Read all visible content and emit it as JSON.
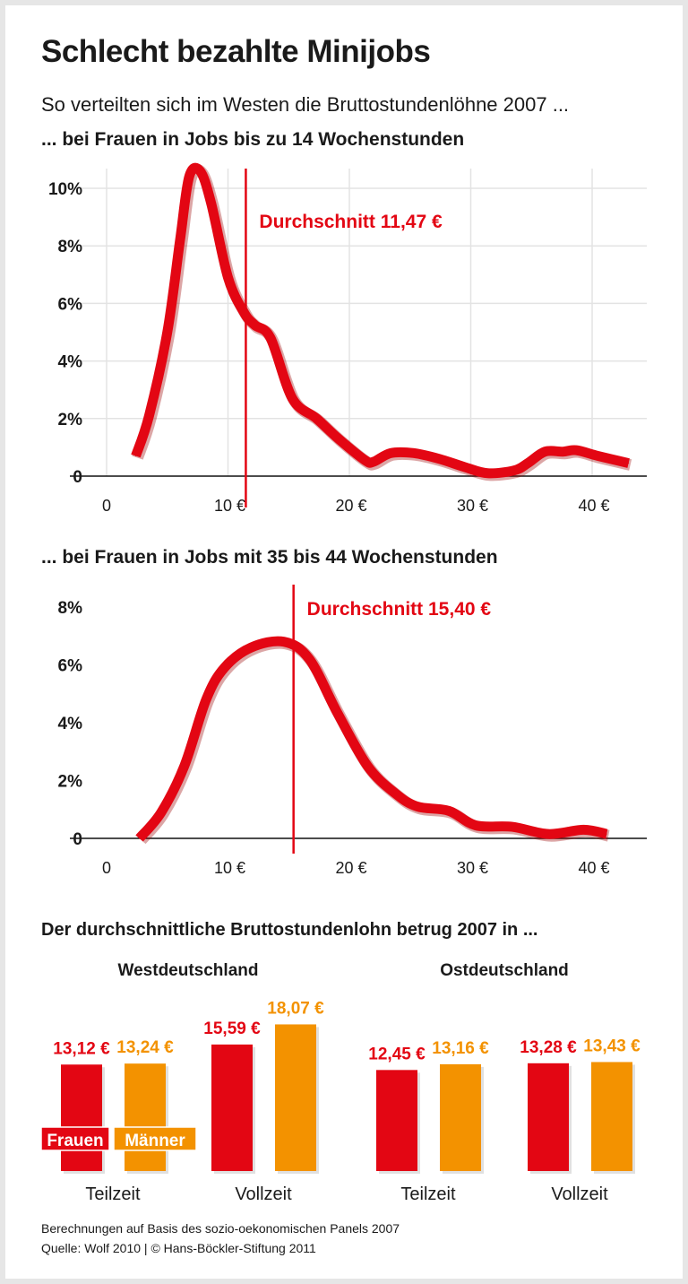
{
  "title": "Schlecht bezahlte Minijobs",
  "subtitle": "So verteilten sich im Westen die Bruttostundenlöhne 2007 ...",
  "colors": {
    "frauen": "#e30613",
    "maenner": "#f39200",
    "text": "#1a1a1a",
    "grid": "#e3e3e3"
  },
  "chart_data": [
    {
      "type": "line",
      "title": "... bei Frauen in Jobs bis zu 14 Wochenstunden",
      "xlim": [
        0,
        43
      ],
      "ylim": [
        0,
        10.7
      ],
      "x_ticks": [
        0,
        10,
        20,
        30,
        40
      ],
      "x_tick_labels": [
        "0",
        "10 €",
        "20 €",
        "30 €",
        "40 €"
      ],
      "y_ticks": [
        0,
        2,
        4,
        6,
        8,
        10
      ],
      "y_tick_labels": [
        "0",
        "2%",
        "4%",
        "6%",
        "8%",
        "10%"
      ],
      "grid": true,
      "annotation": {
        "label": "Durchschnitt 11,47 €",
        "x": 11.47
      },
      "series": [
        {
          "x": [
            2.4,
            3.5,
            5.0,
            6.05,
            6.8,
            7.7,
            8.6,
            10,
            11.3,
            12.2,
            13.5,
            15.3,
            17.3,
            19.1,
            21.3,
            22,
            23.4,
            25.3,
            27.4,
            29.6,
            31.4,
            33.6,
            34.7,
            36.1,
            37.6,
            38.7,
            40.5,
            43
          ],
          "y": [
            0.7,
            2.1,
            5.0,
            8.2,
            10.4,
            10.6,
            9.5,
            6.9,
            5.7,
            5.25,
            4.8,
            2.7,
            2.0,
            1.3,
            0.55,
            0.5,
            0.8,
            0.8,
            0.6,
            0.3,
            0.1,
            0.2,
            0.45,
            0.85,
            0.85,
            0.9,
            0.7,
            0.45
          ]
        }
      ]
    },
    {
      "type": "line",
      "title": "... bei Frauen in Jobs mit 35 bis 44 Wochenstunden",
      "xlim": [
        0,
        43
      ],
      "ylim": [
        0,
        8
      ],
      "x_ticks": [
        0,
        10,
        20,
        30,
        40
      ],
      "x_tick_labels": [
        "0",
        "10 €",
        "20 €",
        "30 €",
        "40 €"
      ],
      "y_ticks": [
        0,
        2,
        4,
        6,
        8
      ],
      "y_tick_labels": [
        "0",
        "2%",
        "4%",
        "6%",
        "8%"
      ],
      "grid": false,
      "annotation": {
        "label": "Durchschnitt 15,40 €",
        "x": 15.4
      },
      "series": [
        {
          "x": [
            2.7,
            4.5,
            6.4,
            8.2,
            9.7,
            11.9,
            14.6,
            16.7,
            19,
            21.5,
            23.8,
            25.6,
            28.2,
            30.4,
            33.4,
            36.4,
            39.3,
            41.2
          ],
          "y": [
            0,
            0.9,
            2.5,
            4.8,
            5.9,
            6.6,
            6.8,
            6.2,
            4.35,
            2.5,
            1.55,
            1.1,
            0.95,
            0.45,
            0.4,
            0.15,
            0.3,
            0.15
          ]
        }
      ]
    },
    {
      "type": "bar",
      "title": "Der durchschnittliche Bruttostundenlohn betrug 2007 in ...",
      "legend": [
        "Frauen",
        "Männer"
      ],
      "regions": [
        {
          "name": "Westdeutschland",
          "groups": [
            {
              "category": "Teilzeit",
              "values": [
                13.12,
                13.24
              ],
              "labels": [
                "13,12 €",
                "13,24 €"
              ]
            },
            {
              "category": "Vollzeit",
              "values": [
                15.59,
                18.07
              ],
              "labels": [
                "15,59 €",
                "18,07 €"
              ]
            }
          ]
        },
        {
          "name": "Ostdeutschland",
          "groups": [
            {
              "category": "Teilzeit",
              "values": [
                12.45,
                13.16
              ],
              "labels": [
                "12,45 €",
                "13,16 €"
              ]
            },
            {
              "category": "Vollzeit",
              "values": [
                13.28,
                13.43
              ],
              "labels": [
                "13,28 €",
                "13,43 €"
              ]
            }
          ]
        }
      ]
    }
  ],
  "footer": {
    "line1": "Berechnungen auf Basis des sozio-oekonomischen Panels 2007",
    "line2": "Quelle: Wolf 2010 | © Hans-Böckler-Stiftung 2011"
  }
}
